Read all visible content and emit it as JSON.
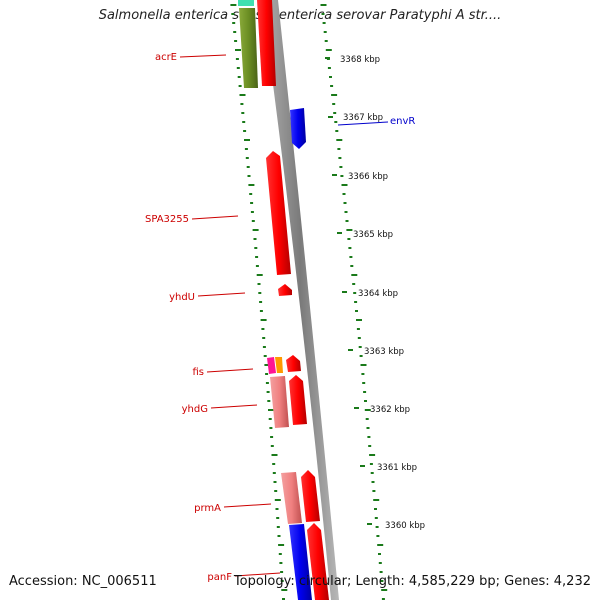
{
  "title": "Salmonella enterica subsp. enterica serovar Paratyphi A str....",
  "footer": {
    "accession": "Accession: NC_006511",
    "summary": "Topology: circular; Length: 4,585,229 bp; Genes: 4,232"
  },
  "colors": {
    "gene_forward": "#ff0000",
    "gene_light": "#f08080",
    "gene_blue": "#0000ee",
    "gene_green": "#6b8e23",
    "gene_teal": "#40e0b0",
    "gene_magenta": "#ff1493",
    "gene_orange": "#ff9900",
    "label_red": "#cc0000",
    "label_blue": "#0000cc",
    "backbone": "#888888",
    "tick_green": "#1a7a1a"
  },
  "scale_labels": [
    "3368 kbp",
    "3367 kbp",
    "3366 kbp",
    "3365 kbp",
    "3364 kbp",
    "3363 kbp",
    "3362 kbp",
    "3361 kbp",
    "3360 kbp"
  ],
  "gene_labels": {
    "acrE": "acrE",
    "envR": "envR",
    "SPA3255": "SPA3255",
    "yhdU": "yhdU",
    "fis": "fis",
    "yhdG": "yhdG",
    "prmA": "prmA",
    "panF": "panF"
  }
}
